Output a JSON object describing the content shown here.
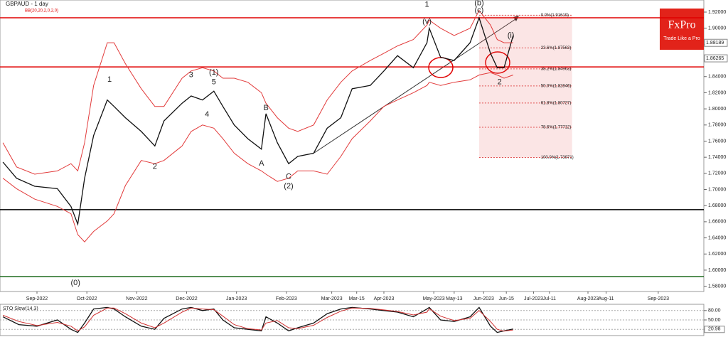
{
  "header": {
    "title": "GBPAUD - 1 day",
    "indicator": "BB(20,20,2,0,2,0)",
    "logo": "FxPro",
    "slogan": "Trade Like a Pro"
  },
  "chart_data": [
    {
      "type": "line",
      "xlim": [
        -16.3,
        294.1
      ],
      "ylim": [
        1.5735,
        1.935
      ],
      "xticks": [
        {
          "value": 0,
          "label": "Sep-2022"
        },
        {
          "value": 22,
          "label": "Oct-2022"
        },
        {
          "value": 44,
          "label": "Nov-2022"
        },
        {
          "value": 66,
          "label": "Dec-2022"
        },
        {
          "value": 88,
          "label": "Jan-2023"
        },
        {
          "value": 110,
          "label": "Feb-2023"
        },
        {
          "value": 130,
          "label": "Mar-2023"
        },
        {
          "value": 141,
          "label": "Mar-15"
        },
        {
          "value": 153,
          "label": "Apr-2023"
        },
        {
          "value": 175,
          "label": "May-2023"
        },
        {
          "value": 184,
          "label": "May-13"
        },
        {
          "value": 197,
          "label": "Jun-2023"
        },
        {
          "value": 207,
          "label": "Jun-15"
        },
        {
          "value": 219,
          "label": "Jul-2023"
        },
        {
          "value": 226,
          "label": "Jul-11"
        },
        {
          "value": 243,
          "label": "Aug-2023"
        },
        {
          "value": 251,
          "label": "Aug-11"
        },
        {
          "value": 274,
          "label": "Sep-2023"
        }
      ],
      "yticks": [
        {
          "value": 1.58,
          "label": "1.58000"
        },
        {
          "value": 1.6,
          "label": "1.60000"
        },
        {
          "value": 1.62,
          "label": "1.62000"
        },
        {
          "value": 1.64,
          "label": "1.64000"
        },
        {
          "value": 1.66,
          "label": "1.66000"
        },
        {
          "value": 1.68,
          "label": "1.68000"
        },
        {
          "value": 1.7,
          "label": "1.70000"
        },
        {
          "value": 1.72,
          "label": "1.72000"
        },
        {
          "value": 1.74,
          "label": "1.74000"
        },
        {
          "value": 1.76,
          "label": "1.76000"
        },
        {
          "value": 1.78,
          "label": "1.78000"
        },
        {
          "value": 1.8,
          "label": "1.80000"
        },
        {
          "value": 1.82,
          "label": "1.82000"
        },
        {
          "value": 1.84,
          "label": "1.84000"
        },
        {
          "value": 1.86,
          "label": "1.86000"
        },
        {
          "value": 1.88,
          "label": "1.88000"
        },
        {
          "value": 1.9,
          "label": "1.90000"
        },
        {
          "value": 1.92,
          "label": "1.92000"
        }
      ],
      "x": [
        -15,
        -9,
        -1,
        9,
        15,
        18,
        21,
        25,
        31,
        34,
        39,
        46,
        52,
        56,
        64,
        68,
        73,
        78,
        82,
        87,
        93,
        99,
        101,
        106,
        111,
        115,
        122,
        128,
        134,
        139,
        147,
        153,
        159,
        166,
        172,
        173,
        178,
        184,
        191,
        195,
        200,
        203,
        206,
        210
      ],
      "series": [
        {
          "color": "#111111",
          "values": [
            1.734,
            1.714,
            1.704,
            1.701,
            1.679,
            1.657,
            1.714,
            1.767,
            1.811,
            1.803,
            1.789,
            1.772,
            1.754,
            1.785,
            1.807,
            1.816,
            1.811,
            1.822,
            1.803,
            1.78,
            1.763,
            1.75,
            1.794,
            1.758,
            1.732,
            1.741,
            1.745,
            1.776,
            1.789,
            1.825,
            1.829,
            1.847,
            1.866,
            1.851,
            1.882,
            1.9,
            1.864,
            1.86,
            1.882,
            1.913,
            1.869,
            1.851,
            1.851,
            1.891
          ]
        },
        {
          "color": "#e23b3b",
          "values": [
            1.758,
            1.728,
            1.719,
            1.723,
            1.732,
            1.723,
            1.758,
            1.829,
            1.882,
            1.882,
            1.856,
            1.825,
            1.803,
            1.803,
            1.838,
            1.847,
            1.851,
            1.847,
            1.838,
            1.838,
            1.833,
            1.82,
            1.807,
            1.789,
            1.776,
            1.772,
            1.78,
            1.811,
            1.833,
            1.847,
            1.86,
            1.869,
            1.878,
            1.886,
            1.904,
            1.91,
            1.9,
            1.891,
            1.9,
            1.922,
            1.904,
            1.886,
            1.882,
            1.882
          ]
        },
        {
          "color": "#e23b3b",
          "values": [
            1.714,
            1.701,
            1.688,
            1.679,
            1.67,
            1.644,
            1.635,
            1.648,
            1.661,
            1.67,
            1.705,
            1.736,
            1.732,
            1.736,
            1.754,
            1.772,
            1.78,
            1.776,
            1.763,
            1.745,
            1.732,
            1.723,
            1.719,
            1.71,
            1.714,
            1.723,
            1.723,
            1.719,
            1.741,
            1.763,
            1.785,
            1.803,
            1.811,
            1.82,
            1.829,
            1.833,
            1.829,
            1.833,
            1.836,
            1.842,
            1.845,
            1.842,
            1.838,
            1.842
          ]
        }
      ],
      "hlines": [
        {
          "value": 1.913,
          "color": "#e00000"
        },
        {
          "value": 1.852,
          "color": "#e00000"
        },
        {
          "value": 1.675,
          "color": "#000000"
        },
        {
          "value": 1.592,
          "color": "#1f6b1f"
        }
      ],
      "price_labels": [
        1.88189,
        1.86265
      ],
      "fib": {
        "x": [
          195,
          236
        ],
        "levels": [
          {
            "value": 1.91619,
            "label": "0.0%(1.91619)"
          },
          {
            "value": 1.87563,
            "label": "23.6%(1.87563)"
          },
          {
            "value": 1.84963,
            "label": "38.2%(1.84963)"
          },
          {
            "value": 1.82846,
            "label": "50.0%(1.82846)"
          },
          {
            "value": 1.80727,
            "label": "61.8%(1.80727)"
          },
          {
            "value": 1.77712,
            "label": "78.6%(1.77712)"
          },
          {
            "value": 1.73971,
            "label": "100.0%(1.73971)"
          }
        ]
      },
      "annotations": [
        {
          "text": "(0)",
          "x": 17,
          "y": 1.584
        },
        {
          "text": "1",
          "x": 32,
          "y": 1.836
        },
        {
          "text": "2",
          "x": 52,
          "y": 1.728
        },
        {
          "text": "3",
          "x": 68,
          "y": 1.842
        },
        {
          "text": "(1)",
          "x": 78,
          "y": 1.845
        },
        {
          "text": "5",
          "x": 78,
          "y": 1.833
        },
        {
          "text": "4",
          "x": 75,
          "y": 1.793
        },
        {
          "text": "B",
          "x": 101,
          "y": 1.801
        },
        {
          "text": "A",
          "x": 99,
          "y": 1.732
        },
        {
          "text": "C",
          "x": 111,
          "y": 1.716
        },
        {
          "text": "(2)",
          "x": 111,
          "y": 1.704
        },
        {
          "text": "1",
          "x": 172,
          "y": 1.929
        },
        {
          "text": "(v)",
          "x": 172,
          "y": 1.908
        },
        {
          "text": "(b)",
          "x": 195,
          "y": 1.931
        },
        {
          "text": "(c)",
          "x": 195,
          "y": 1.922
        },
        {
          "text": "(i)",
          "x": 209,
          "y": 1.891
        },
        {
          "text": "2",
          "x": 204,
          "y": 1.833
        }
      ]
    },
    {
      "type": "line",
      "title": "STO Slow(14,3)",
      "xlim": [
        -16.3,
        294.1
      ],
      "ylim": [
        0,
        100
      ],
      "yticks": [
        {
          "value": 20,
          "label": "20.00"
        },
        {
          "value": 50,
          "label": "50.00"
        },
        {
          "value": 80,
          "label": "80.00"
        }
      ],
      "current": {
        "value": 20.98,
        "label": "20.98"
      },
      "x": [
        -15,
        -8,
        0,
        9,
        15,
        18,
        21,
        25,
        31,
        34,
        39,
        46,
        52,
        56,
        64,
        68,
        73,
        78,
        82,
        87,
        93,
        99,
        101,
        106,
        111,
        115,
        122,
        128,
        134,
        139,
        147,
        153,
        159,
        166,
        172,
        173,
        178,
        184,
        191,
        195,
        200,
        203,
        206,
        210
      ],
      "series": [
        {
          "color": "#111111",
          "values": [
            60,
            35,
            30,
            50,
            20,
            10,
            40,
            85,
            90,
            85,
            60,
            30,
            20,
            55,
            85,
            90,
            80,
            85,
            50,
            25,
            20,
            15,
            60,
            40,
            15,
            25,
            40,
            70,
            85,
            90,
            85,
            80,
            75,
            60,
            85,
            90,
            50,
            45,
            60,
            90,
            30,
            10,
            15,
            20.98
          ]
        },
        {
          "color": "#d03030",
          "values": [
            65,
            45,
            32,
            42,
            30,
            15,
            28,
            65,
            88,
            88,
            70,
            40,
            25,
            40,
            75,
            88,
            85,
            83,
            62,
            35,
            22,
            18,
            40,
            48,
            25,
            22,
            33,
            58,
            78,
            88,
            87,
            82,
            77,
            66,
            75,
            86,
            62,
            48,
            55,
            80,
            45,
            20,
            14,
            18
          ]
        }
      ]
    }
  ]
}
